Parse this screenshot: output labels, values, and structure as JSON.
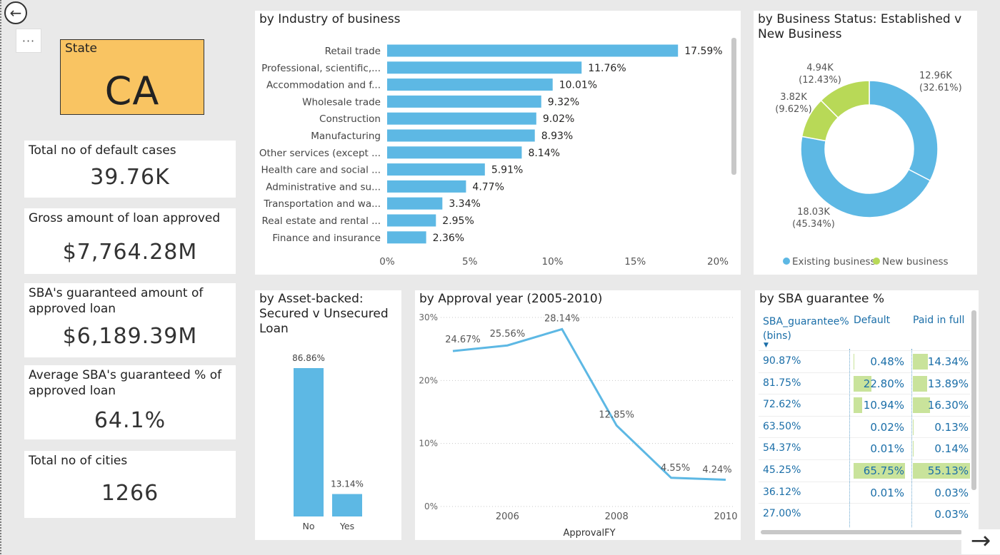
{
  "nav": {
    "back_icon": "back-arrow-icon",
    "more_label": "···",
    "next_icon": "right-arrow-icon"
  },
  "state": {
    "label": "State",
    "value": "CA"
  },
  "kpis": [
    {
      "title": "Total no of default cases",
      "value": "39.76K"
    },
    {
      "title": "Gross amount of loan approved",
      "value": "$7,764.28M"
    },
    {
      "title": "SBA's guaranteed amount of approved loan",
      "value": "$6,189.39M"
    },
    {
      "title": "Average SBA's guaranteed % of approved loan",
      "value": "64.1%"
    },
    {
      "title": "Total no of cities",
      "value": "1266"
    }
  ],
  "industry": {
    "title": "by Industry of business",
    "chart_data": {
      "type": "bar",
      "orientation": "horizontal",
      "categories": [
        "Retail trade",
        "Professional, scientific,...",
        "Accommodation and f...",
        "Wholesale trade",
        "Construction",
        "Manufacturing",
        "Other services (except ...",
        "Health care and social ...",
        "Administrative and su...",
        "Transportation and wa...",
        "Real estate and rental ...",
        "Finance and insurance"
      ],
      "values": [
        17.59,
        11.76,
        10.01,
        9.32,
        9.02,
        8.93,
        8.14,
        5.91,
        4.77,
        3.34,
        2.95,
        2.36
      ],
      "data_labels": [
        "17.59%",
        "11.76%",
        "10.01%",
        "9.32%",
        "9.02%",
        "8.93%",
        "8.14%",
        "5.91%",
        "4.77%",
        "3.34%",
        "2.95%",
        "2.36%"
      ],
      "xlim": [
        0,
        20
      ],
      "xticks": [
        "0%",
        "5%",
        "10%",
        "15%",
        "20%"
      ],
      "color": "#5db8e4"
    }
  },
  "status": {
    "title": "by Business Status: Established v New Business",
    "chart_data": {
      "type": "pie",
      "donut": true,
      "slices": [
        {
          "name": "Existing business",
          "value": 12.96,
          "label": "12.96K",
          "pct": "(32.61%)",
          "color": "#5db8e4"
        },
        {
          "name": "Existing business",
          "value": 18.03,
          "label": "18.03K",
          "pct": "(45.34%)",
          "color": "#5db8e4"
        },
        {
          "name": "New business",
          "value": 3.82,
          "label": "3.82K",
          "pct": "(9.62%)",
          "color": "#b8d957"
        },
        {
          "name": "New business",
          "value": 4.94,
          "label": "4.94K",
          "pct": "(12.43%)",
          "color": "#b8d957"
        }
      ],
      "legend": [
        {
          "name": "Existing business",
          "color": "#5db8e4"
        },
        {
          "name": "New business",
          "color": "#b8d957"
        }
      ],
      "legend_position": "bottom"
    }
  },
  "asset": {
    "title": "by Asset-backed: Secured v Unsecured Loan",
    "chart_data": {
      "type": "bar",
      "categories": [
        "No",
        "Yes"
      ],
      "values": [
        86.86,
        13.14
      ],
      "data_labels": [
        "86.86%",
        "13.14%"
      ],
      "ylim": [
        0,
        86.86
      ],
      "color": "#5db8e4"
    }
  },
  "approval": {
    "title": "by Approval year (2005-2010)",
    "chart_data": {
      "type": "line",
      "x": [
        2005,
        2006,
        2007,
        2008,
        2009,
        2010
      ],
      "values": [
        24.67,
        25.56,
        28.14,
        12.85,
        4.55,
        4.24
      ],
      "data_labels": [
        "24.67%",
        "25.56%",
        "28.14%",
        "12.85%",
        "4.55%",
        "4.24%"
      ],
      "xticks": [
        "2006",
        "2008",
        "2010"
      ],
      "xtick_values": [
        2006,
        2008,
        2010
      ],
      "yticks": [
        "0%",
        "10%",
        "20%",
        "30%"
      ],
      "ytick_values": [
        0,
        10,
        20,
        30
      ],
      "xlim": [
        2005,
        2010
      ],
      "ylim": [
        0,
        30
      ],
      "xlabel": "ApprovalFY",
      "color": "#5db8e4"
    }
  },
  "guarantee": {
    "title": "by SBA guarantee %",
    "columns": [
      "SBA_guarantee% (bins)",
      "Default",
      "Paid in full"
    ],
    "sort_icon": "sort-down-icon",
    "rows": [
      {
        "bin": "90.87%",
        "default": "0.48%",
        "default_v": 0.48,
        "paid": "14.34%",
        "paid_v": 14.34
      },
      {
        "bin": "81.75%",
        "default": "22.80%",
        "default_v": 22.8,
        "paid": "13.89%",
        "paid_v": 13.89
      },
      {
        "bin": "72.62%",
        "default": "10.94%",
        "default_v": 10.94,
        "paid": "16.30%",
        "paid_v": 16.3
      },
      {
        "bin": "63.50%",
        "default": "0.02%",
        "default_v": 0.02,
        "paid": "0.13%",
        "paid_v": 0.13
      },
      {
        "bin": "54.37%",
        "default": "0.01%",
        "default_v": 0.01,
        "paid": "0.14%",
        "paid_v": 0.14
      },
      {
        "bin": "45.25%",
        "default": "65.75%",
        "default_v": 65.75,
        "paid": "55.13%",
        "paid_v": 55.13
      },
      {
        "bin": "36.12%",
        "default": "0.01%",
        "default_v": 0.01,
        "paid": "0.03%",
        "paid_v": 0.03
      },
      {
        "bin": "27.00%",
        "default": "",
        "default_v": 0,
        "paid": "0.03%",
        "paid_v": 0.03
      }
    ],
    "bar_color": "#c9e39b"
  }
}
